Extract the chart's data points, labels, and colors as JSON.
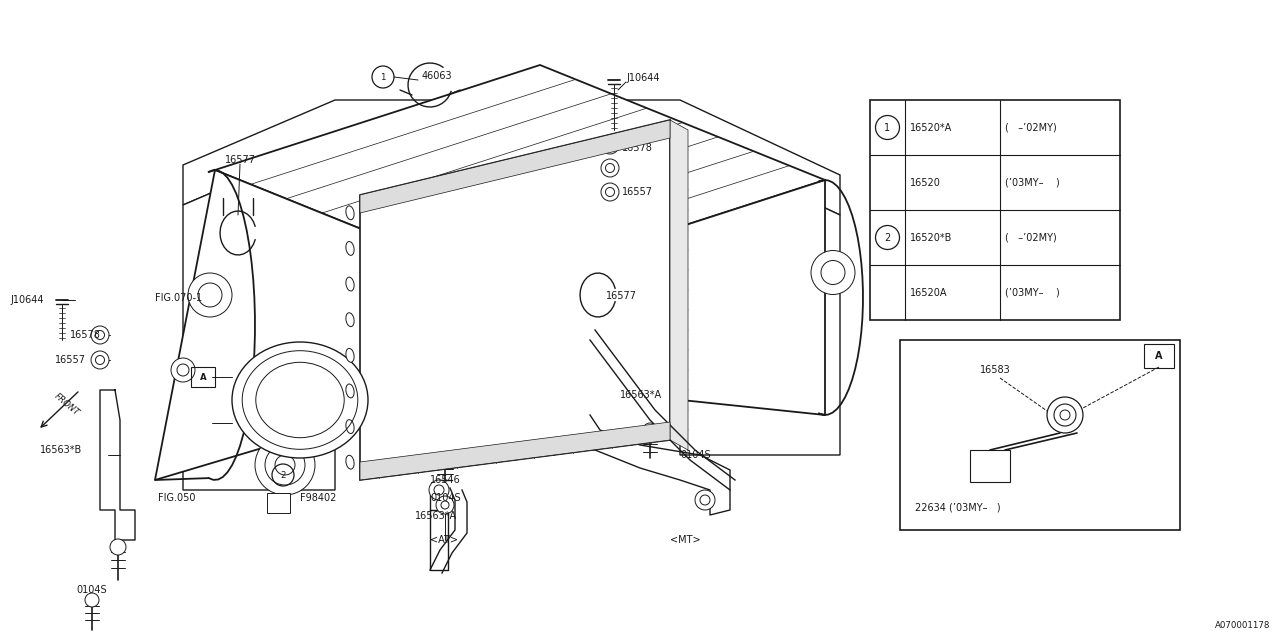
{
  "bg_color": "#ffffff",
  "line_color": "#1a1a1a",
  "diagram_id": "A070001178",
  "table1_rows": [
    {
      "circle": "1",
      "part": "16520*A",
      "note": "(   –’02MY)"
    },
    {
      "circle": "",
      "part": "16520",
      "note": "(’03MY–    )"
    },
    {
      "circle": "2",
      "part": "16520*B",
      "note": "(   –’02MY)"
    },
    {
      "circle": "",
      "part": "16520A",
      "note": "(’03MY–    )"
    }
  ],
  "note_t1_col3": "(  –’02MY)",
  "fs": 7.0,
  "fs_sm": 6.2
}
